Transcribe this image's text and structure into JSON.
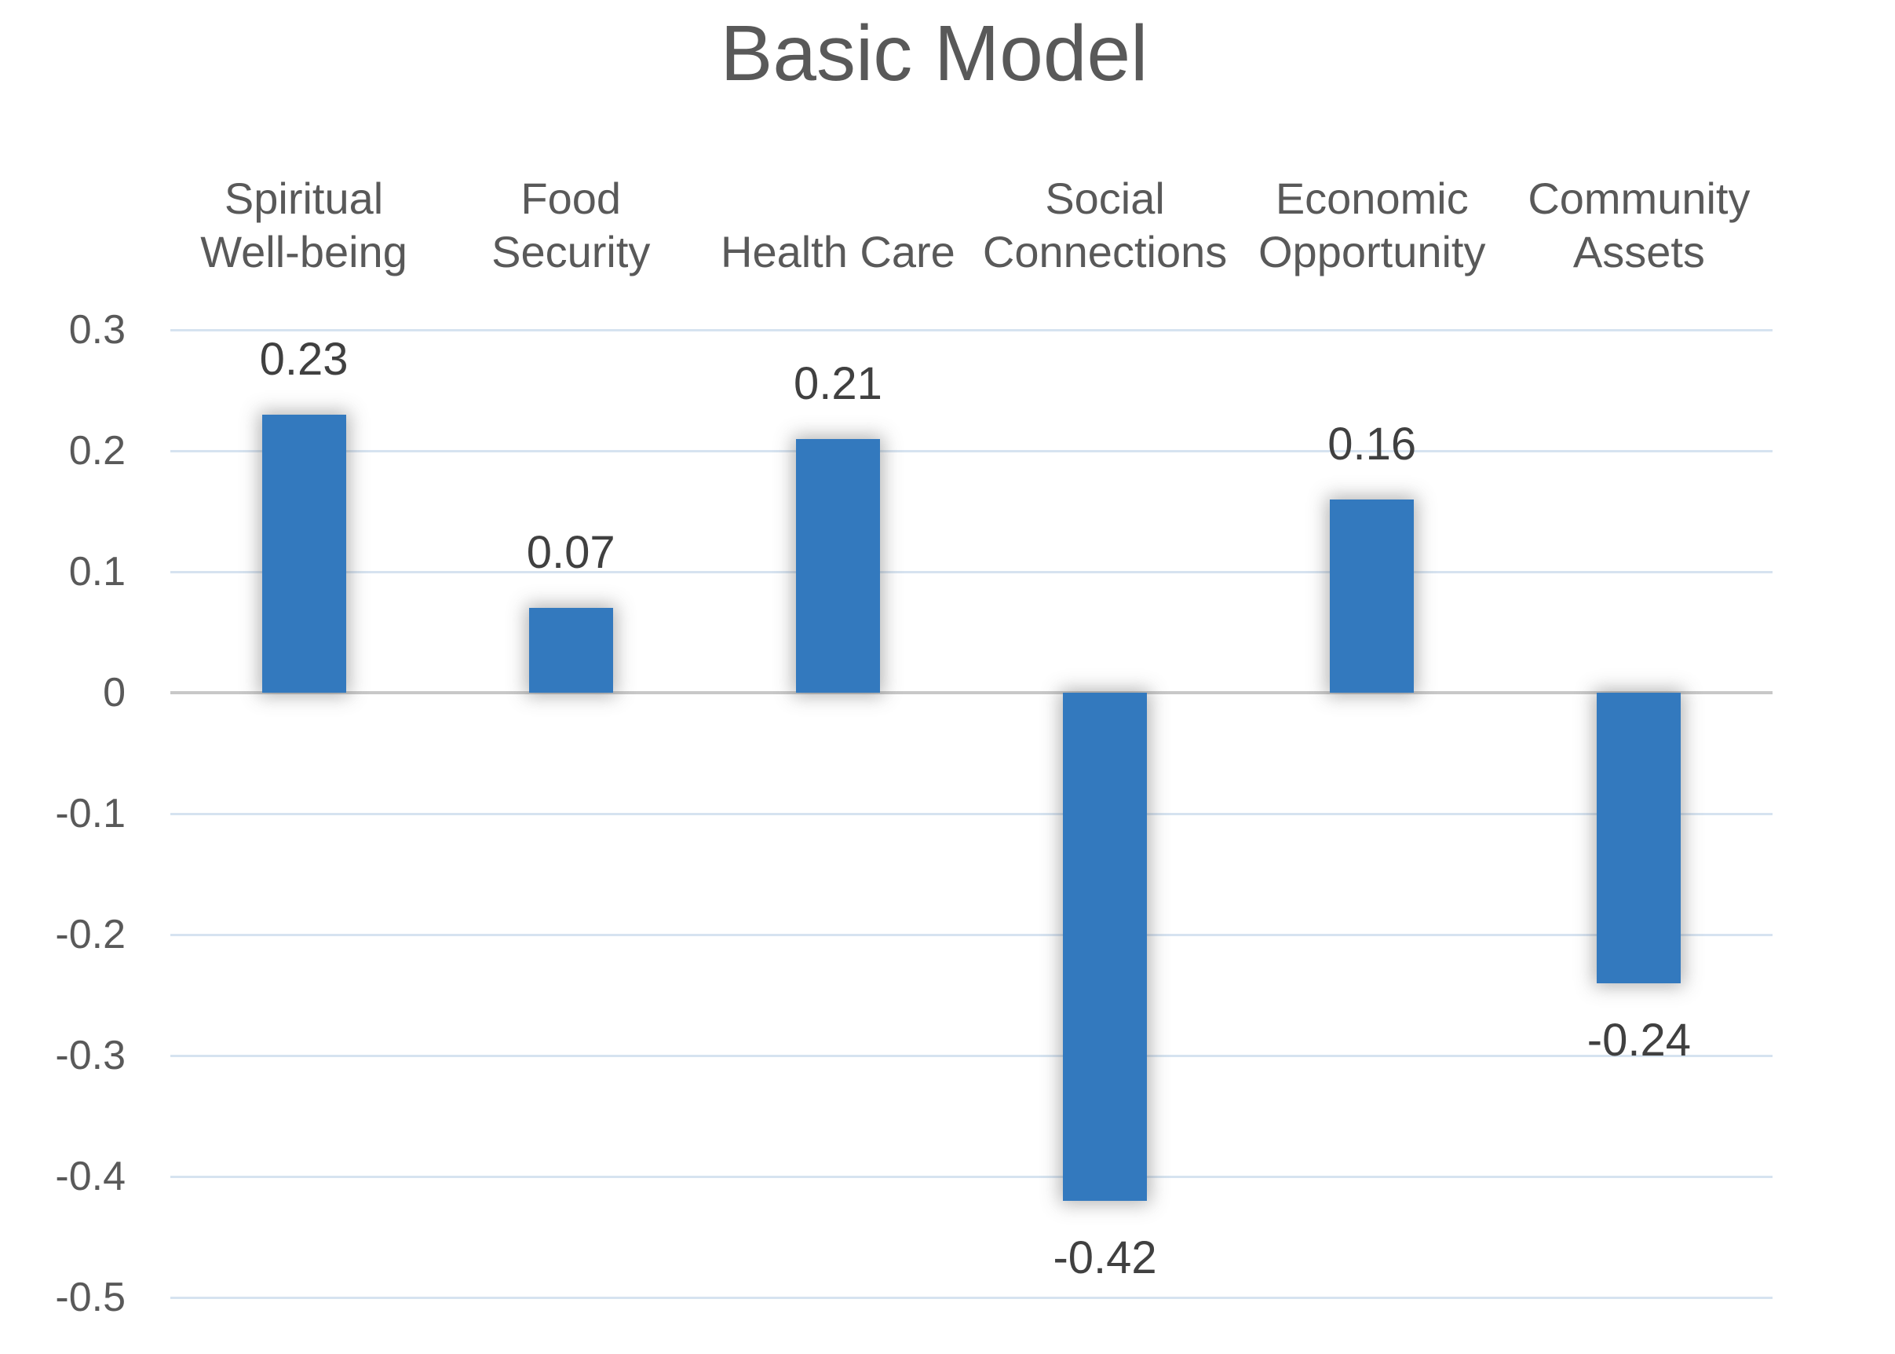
{
  "chart_data": {
    "type": "bar",
    "title": "Basic Model",
    "categories": [
      "Spiritual Well-being",
      "Food Security",
      "Health Care",
      "Social Connections",
      "Economic Opportunity",
      "Community Assets"
    ],
    "category_label_lines": [
      [
        "Spiritual",
        "Well-being"
      ],
      [
        "Food",
        "Security"
      ],
      [
        "Health Care"
      ],
      [
        "Social",
        "Connections"
      ],
      [
        "Economic",
        "Opportunity"
      ],
      [
        "Community",
        "Assets"
      ]
    ],
    "values": [
      0.23,
      0.07,
      0.21,
      -0.42,
      0.16,
      -0.24
    ],
    "value_labels": [
      "0.23",
      "0.07",
      "0.21",
      "-0.42",
      "0.16",
      "-0.24"
    ],
    "xlabel": "",
    "ylabel": "",
    "y_axis": {
      "min": -0.5,
      "max": 0.3,
      "step": 0.1,
      "tick_labels": [
        "0.3",
        "0.2",
        "0.1",
        "0",
        "-0.1",
        "-0.2",
        "-0.3",
        "-0.4",
        "-0.5"
      ],
      "tick_values": [
        0.3,
        0.2,
        0.1,
        0,
        -0.1,
        -0.2,
        -0.3,
        -0.4,
        -0.5
      ]
    },
    "grid": true,
    "legend": "none",
    "colors": {
      "bar": "#3379BE",
      "gridline": "#D6E3F0",
      "zero_line": "#C8C8C8",
      "title_text": "#595959",
      "axis_text": "#595959",
      "value_label_text": "#404040",
      "background": "#FFFFFF"
    }
  }
}
